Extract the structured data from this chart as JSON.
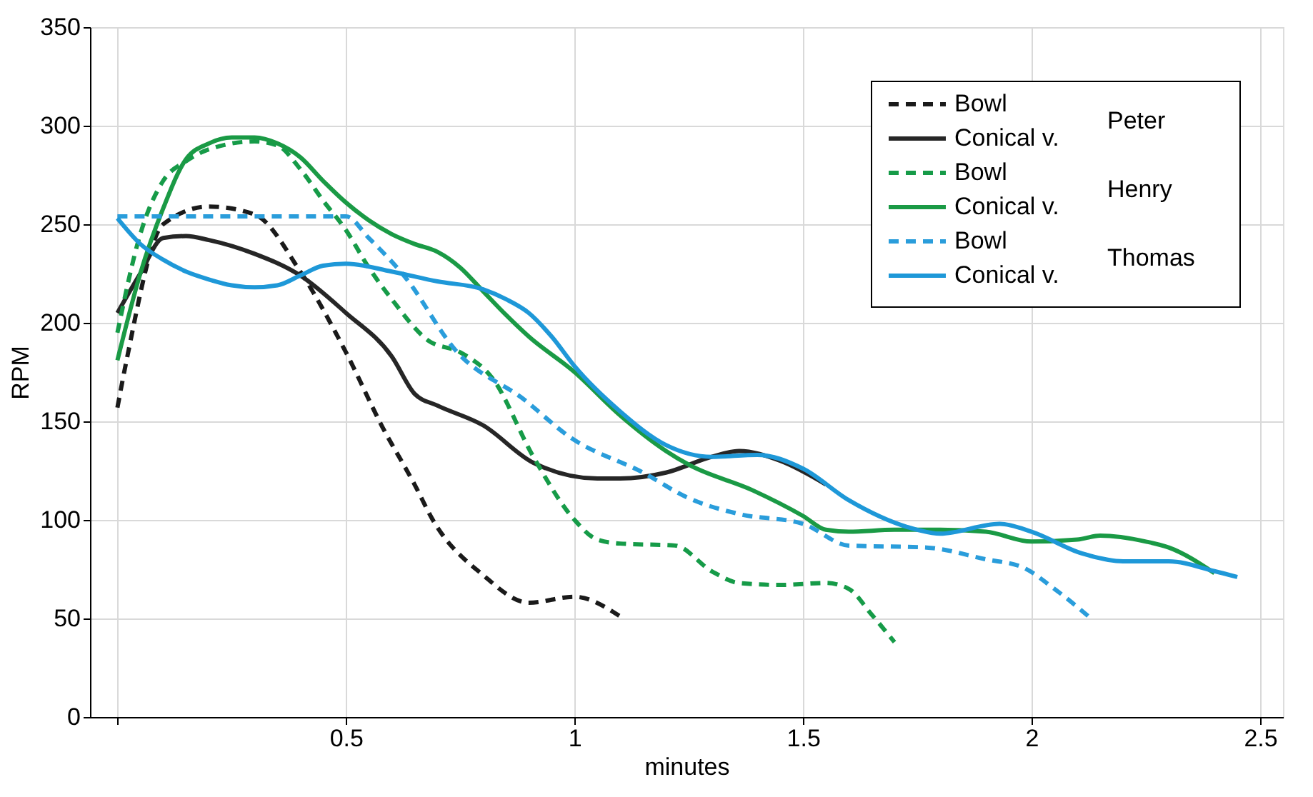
{
  "chart_data": {
    "type": "line",
    "xlabel": "minutes",
    "ylabel": "RPM",
    "xlim": [
      -0.06,
      2.55
    ],
    "xticks": [
      {
        "value": 0,
        "label": null
      },
      0.5,
      1,
      1.5,
      2,
      2.5
    ],
    "ylim": [
      0,
      350
    ],
    "yticks": [
      0,
      50,
      100,
      150,
      200,
      250,
      300,
      350
    ],
    "grid": true,
    "legend": "top right",
    "marker": "none",
    "annotations": [
      "Peter",
      "Henry",
      "Thomas"
    ],
    "series": [
      {
        "name": "Bowl",
        "color": "#1a1a1a",
        "line_style": "dashed",
        "x": [
          0,
          0.02,
          0.1,
          0.2,
          0.3,
          0.4,
          0.5,
          0.58,
          0.65,
          0.69,
          0.8,
          0.9,
          1.0,
          1.1
        ],
        "values": [
          157,
          181,
          250,
          259,
          255,
          226,
          185,
          147,
          118,
          100,
          72,
          58,
          61,
          51
        ]
      },
      {
        "name": "Conical v.",
        "color": "#262626",
        "line_style": "solid",
        "x": [
          0,
          0.05,
          0.1,
          0.15,
          0.2,
          0.3,
          0.4,
          0.5,
          0.6,
          0.65,
          0.7,
          0.8,
          0.91,
          1.05,
          1.1,
          1.2,
          1.3,
          1.36,
          1.45,
          1.55
        ],
        "values": [
          205,
          225,
          243,
          244,
          242,
          235,
          224,
          205,
          183,
          164,
          158,
          148,
          129,
          121,
          121,
          124,
          132,
          135,
          130,
          118
        ]
      },
      {
        "name": "Bowl",
        "color": "#169b48",
        "line_style": "dashed",
        "x": [
          0,
          0.05,
          0.1,
          0.15,
          0.2,
          0.3,
          0.35,
          0.4,
          0.45,
          0.5,
          0.55,
          0.6,
          0.68,
          0.75,
          0.82,
          0.91,
          1.0,
          1.05,
          1.1,
          1.22,
          1.3,
          1.36,
          1.45,
          1.55,
          1.6,
          1.65,
          1.7
        ],
        "values": [
          195,
          245,
          272,
          282,
          288,
          292,
          290,
          278,
          262,
          247,
          228,
          212,
          191,
          185,
          172,
          132,
          100,
          90,
          88,
          87,
          74,
          68,
          67,
          68,
          65,
          52,
          38
        ]
      },
      {
        "name": "Conical v.",
        "color": "#1a9a45",
        "line_style": "solid",
        "x": [
          0,
          0.05,
          0.1,
          0.15,
          0.2,
          0.25,
          0.3,
          0.35,
          0.4,
          0.45,
          0.5,
          0.55,
          0.6,
          0.65,
          0.7,
          0.75,
          0.8,
          0.85,
          0.9,
          1.0,
          1.1,
          1.2,
          1.25,
          1.39,
          1.5,
          1.55,
          1.6,
          1.7,
          1.8,
          1.9,
          2.0,
          2.1,
          2.15,
          2.25,
          2.3,
          2.4
        ],
        "values": [
          181,
          225,
          258,
          283,
          291,
          294,
          294,
          291,
          284,
          272,
          261,
          252,
          245,
          240,
          236,
          228,
          216,
          204,
          193,
          175,
          153,
          135,
          128,
          115,
          102,
          95,
          94,
          95,
          95,
          94,
          89,
          90,
          92,
          89,
          86,
          73
        ]
      },
      {
        "name": "Bowl",
        "color": "#2a9ddb",
        "line_style": "dashed",
        "x": [
          0,
          0.5,
          0.55,
          0.63,
          0.74,
          0.89,
          0.99,
          1.15,
          1.25,
          1.36,
          1.5,
          1.6,
          1.77,
          1.9,
          1.98,
          2.05,
          2.13
        ],
        "values": [
          254,
          254,
          243,
          223,
          186,
          161,
          142,
          124,
          111,
          103,
          98,
          87,
          86,
          80,
          76,
          65,
          50
        ]
      },
      {
        "name": "Conical v.",
        "color": "#1e98d8",
        "line_style": "solid",
        "x": [
          0,
          0.05,
          0.1,
          0.15,
          0.2,
          0.25,
          0.3,
          0.35,
          0.4,
          0.45,
          0.5,
          0.6,
          0.7,
          0.8,
          0.85,
          0.9,
          0.95,
          1.0,
          1.1,
          1.2,
          1.3,
          1.4,
          1.5,
          1.6,
          1.75,
          1.8,
          1.93,
          2.0,
          2.11,
          2.2,
          2.3,
          2.4,
          2.45
        ],
        "values": [
          253,
          240,
          232,
          226,
          222,
          219,
          218,
          219,
          224,
          229,
          230,
          226,
          221,
          217,
          212,
          205,
          193,
          178,
          155,
          138,
          132,
          133,
          126,
          110,
          95,
          93,
          98,
          94,
          83,
          79,
          79,
          74,
          71
        ]
      }
    ]
  }
}
